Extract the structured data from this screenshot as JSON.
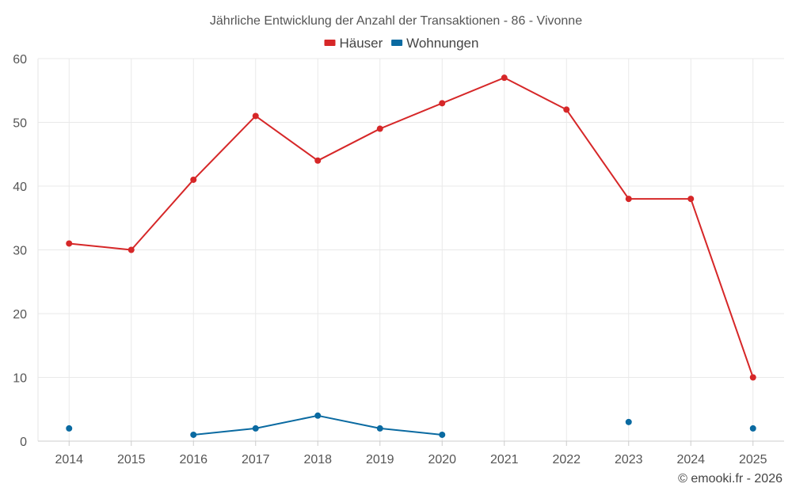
{
  "chart_data": {
    "type": "line",
    "title": "Jährliche Entwicklung der Anzahl der Transaktionen - 86 - Vivonne",
    "categories": [
      "2014",
      "2015",
      "2016",
      "2017",
      "2018",
      "2019",
      "2020",
      "2021",
      "2022",
      "2023",
      "2024",
      "2025"
    ],
    "series": [
      {
        "name": "Häuser",
        "color": "#d62728",
        "values": [
          31,
          30,
          41,
          51,
          44,
          49,
          53,
          57,
          52,
          38,
          38,
          10
        ]
      },
      {
        "name": "Wohnungen",
        "color": "#0a6aa1",
        "values": [
          2,
          null,
          1,
          2,
          4,
          2,
          1,
          null,
          null,
          3,
          null,
          2
        ]
      }
    ],
    "yticks": [
      "0",
      "10",
      "20",
      "30",
      "40",
      "50",
      "60"
    ],
    "ylim": [
      0,
      60
    ],
    "xlabel": "",
    "ylabel": "",
    "grid": true,
    "legend_position": "top-center"
  },
  "credit": "© emooki.fr - 2026"
}
